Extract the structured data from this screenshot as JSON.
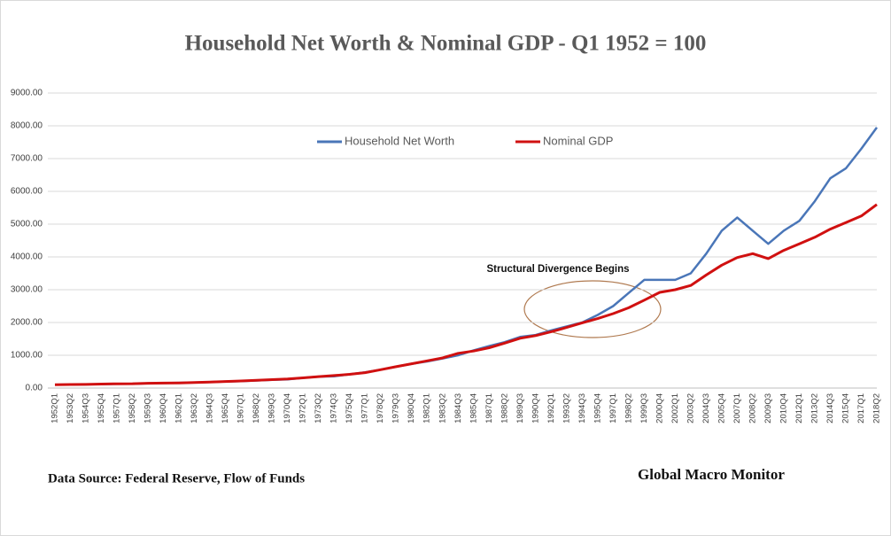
{
  "chart_data": {
    "type": "line",
    "title": "Household Net Worth & Nominal GDP - Q1 1952 = 100",
    "annotation": "Structural Divergence Begins",
    "source": "Data Source:  Federal Reserve,  Flow of Funds",
    "credit": "Global Macro Monitor",
    "grid": true,
    "legend": "top",
    "categories": [
      "1952Q1",
      "1953Q2",
      "1954Q3",
      "1955Q4",
      "1957Q1",
      "1958Q2",
      "1959Q3",
      "1960Q4",
      "1962Q1",
      "1963Q2",
      "1964Q3",
      "1965Q4",
      "1967Q1",
      "1968Q2",
      "1969Q3",
      "1970Q4",
      "1972Q1",
      "1973Q2",
      "1974Q3",
      "1975Q4",
      "1977Q1",
      "1978Q2",
      "1979Q3",
      "1980Q4",
      "1982Q1",
      "1983Q2",
      "1984Q3",
      "1985Q4",
      "1987Q1",
      "1988Q2",
      "1989Q3",
      "1990Q4",
      "1992Q1",
      "1993Q2",
      "1994Q3",
      "1995Q4",
      "1997Q1",
      "1998Q2",
      "1999Q3",
      "2000Q4",
      "2002Q1",
      "2003Q2",
      "2004Q3",
      "2005Q4",
      "2007Q1",
      "2008Q2",
      "2009Q3",
      "2010Q4",
      "2012Q1",
      "2013Q2",
      "2014Q3",
      "2015Q4",
      "2017Q1",
      "2018Q2"
    ],
    "series": [
      {
        "name": "Household Net Worth",
        "color": "#4a76b8",
        "values": [
          100,
          105,
          110,
          120,
          128,
          130,
          145,
          150,
          160,
          170,
          185,
          200,
          210,
          230,
          250,
          265,
          310,
          350,
          360,
          420,
          480,
          560,
          650,
          740,
          810,
          900,
          1000,
          1150,
          1280,
          1400,
          1560,
          1620,
          1760,
          1880,
          2000,
          2230,
          2500,
          2900,
          3300,
          3300,
          3300,
          3500,
          4100,
          4800,
          5200,
          4800,
          4400,
          4800,
          5100,
          5700,
          6400,
          6700,
          7300,
          7950
        ]
      },
      {
        "name": "Nominal GDP",
        "color": "#d01010",
        "values": [
          100,
          108,
          112,
          122,
          130,
          132,
          145,
          150,
          158,
          168,
          182,
          200,
          215,
          235,
          258,
          275,
          310,
          350,
          380,
          420,
          470,
          560,
          650,
          740,
          830,
          920,
          1060,
          1130,
          1230,
          1370,
          1520,
          1600,
          1720,
          1850,
          1990,
          2120,
          2270,
          2450,
          2680,
          2920,
          3000,
          3130,
          3450,
          3750,
          3980,
          4100,
          3950,
          4200,
          4400,
          4600,
          4850,
          5050,
          5250,
          5600
        ]
      }
    ],
    "ylim": [
      0,
      9000
    ],
    "yticks": [
      {
        "value": 0,
        "label": "0.00"
      },
      {
        "value": 1000,
        "label": "1000.00"
      },
      {
        "value": 2000,
        "label": "2000.00"
      },
      {
        "value": 3000,
        "label": "3000.00"
      },
      {
        "value": 4000,
        "label": "4000.00"
      },
      {
        "value": 5000,
        "label": "5000.00"
      },
      {
        "value": 6000,
        "label": "6000.00"
      },
      {
        "value": 7000,
        "label": "7000.00"
      },
      {
        "value": 8000,
        "label": "8000.00"
      },
      {
        "value": 9000,
        "label": "9000.00"
      }
    ]
  }
}
